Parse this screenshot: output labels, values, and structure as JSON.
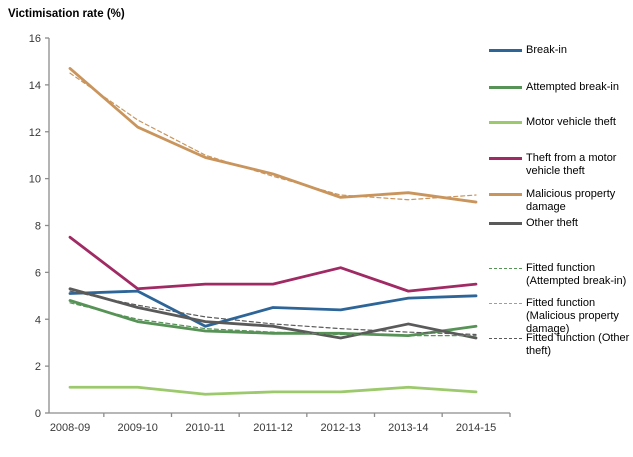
{
  "title": "Victimisation rate (%)",
  "axis_color": "#8C8C8C",
  "chart_data": {
    "type": "line",
    "title": "Victimisation rate (%)",
    "xlabel": "",
    "ylabel": "Victimisation rate (%)",
    "ylim": [
      0,
      16
    ],
    "ytick_step": 2,
    "grid": false,
    "legend_position": "right",
    "categories": [
      "2008-09",
      "2009-10",
      "2010-11",
      "2011-12",
      "2012-13",
      "2013-14",
      "2014-15"
    ],
    "series": [
      {
        "name": "Break-in",
        "color": "#2E6598",
        "style": "solid",
        "values": [
          5.1,
          5.2,
          3.7,
          4.5,
          4.4,
          4.9,
          5.0
        ]
      },
      {
        "name": "Attempted break-in",
        "color": "#579257",
        "style": "solid",
        "values": [
          4.8,
          3.9,
          3.5,
          3.4,
          3.4,
          3.3,
          3.7
        ]
      },
      {
        "name": "Motor vehicle theft",
        "color": "#9CC96C",
        "style": "solid",
        "values": [
          1.1,
          1.1,
          0.8,
          0.9,
          0.9,
          1.1,
          0.9
        ]
      },
      {
        "name": "Theft from a motor vehicle theft",
        "color": "#A02A63",
        "style": "solid",
        "values": [
          7.5,
          5.3,
          5.5,
          5.5,
          6.2,
          5.2,
          5.5
        ]
      },
      {
        "name": "Malicious property damage",
        "color": "#C9955D",
        "style": "solid",
        "values": [
          14.7,
          12.2,
          10.9,
          10.2,
          9.2,
          9.4,
          9.0
        ]
      },
      {
        "name": "Other theft",
        "color": "#5A5A5A",
        "style": "solid",
        "values": [
          5.3,
          4.5,
          3.9,
          3.7,
          3.2,
          3.8,
          3.2
        ]
      },
      {
        "name": "Fitted function (Attempted break-in)",
        "color": "#579257",
        "style": "dashed",
        "values": [
          4.7,
          4.0,
          3.6,
          3.45,
          3.35,
          3.3,
          3.3
        ]
      },
      {
        "name": "Fitted function (Malicious property damage)",
        "color": "#C9955D",
        "style": "dashed",
        "values": [
          14.5,
          12.5,
          11.0,
          10.1,
          9.3,
          9.1,
          9.3
        ]
      },
      {
        "name": "Fitted function (Other theft)",
        "color": "#5A5A5A",
        "style": "dashed",
        "values": [
          5.2,
          4.6,
          4.1,
          3.8,
          3.6,
          3.45,
          3.35
        ]
      }
    ]
  }
}
